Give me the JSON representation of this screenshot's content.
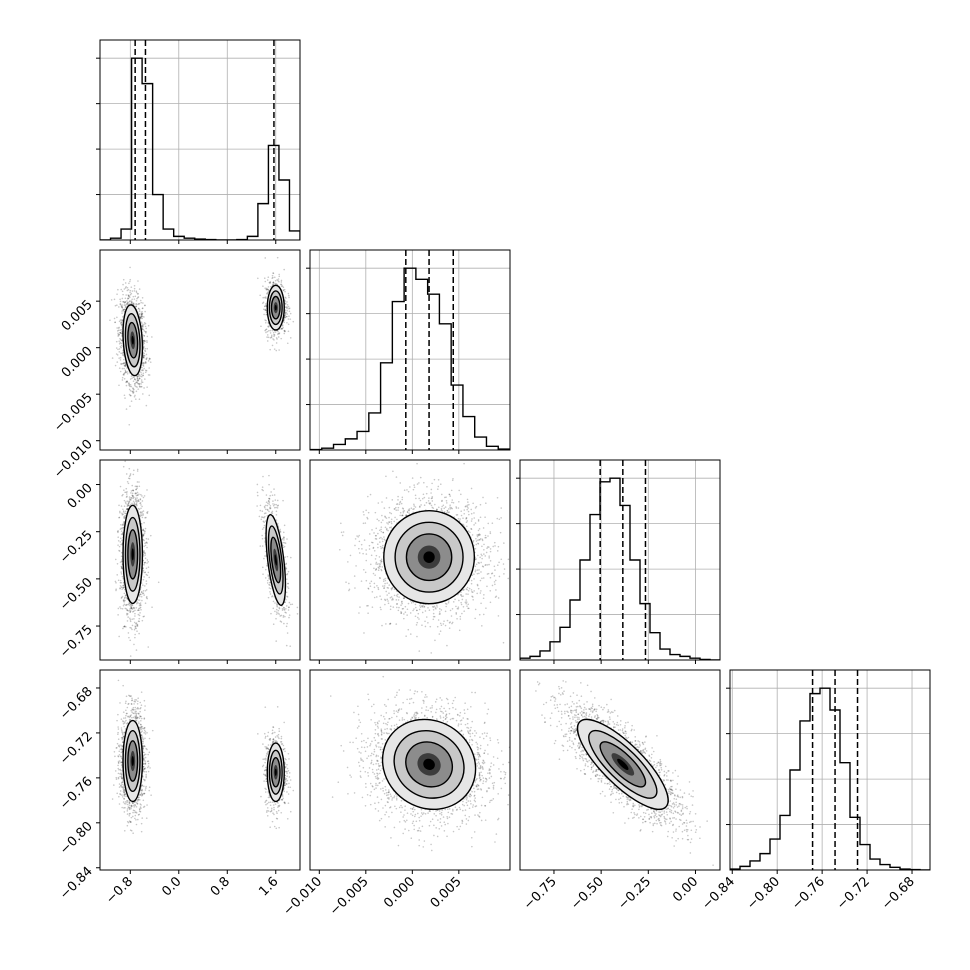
{
  "chart_data": {
    "type": "corner",
    "params": [
      {
        "range": [
          -1.3,
          2.0
        ],
        "ticks": [
          -0.8,
          0.0,
          0.8,
          1.6
        ],
        "tick_labels": [
          "−0.8",
          "0.0",
          "0.8",
          "1.6"
        ],
        "quantiles": [
          -0.72,
          -0.55,
          1.57
        ]
      },
      {
        "range": [
          -0.011,
          0.0105
        ],
        "ticks": [
          -0.01,
          -0.005,
          0.0,
          0.005
        ],
        "tick_labels": [
          "−0.010",
          "−0.005",
          "0.000",
          "0.005"
        ],
        "quantiles": [
          -0.0007,
          0.0018,
          0.0044
        ]
      },
      {
        "range": [
          -0.93,
          0.13
        ],
        "ticks": [
          -0.75,
          -0.5,
          -0.25,
          0.0
        ],
        "tick_labels": [
          "−0.75",
          "−0.50",
          "−0.25",
          "0.00"
        ],
        "quantiles": [
          -0.505,
          -0.385,
          -0.265
        ]
      },
      {
        "range": [
          -0.842,
          -0.664
        ],
        "ticks": [
          -0.84,
          -0.8,
          -0.76,
          -0.72,
          -0.68
        ],
        "tick_labels": [
          "−0.84",
          "−0.80",
          "−0.76",
          "−0.72",
          "−0.68"
        ],
        "quantiles": [
          -0.7685,
          -0.7485,
          -0.7285
        ]
      }
    ],
    "histograms": [
      {
        "param": 0,
        "counts": [
          0,
          0.01,
          0.06,
          1.0,
          0.86,
          0.25,
          0.06,
          0.02,
          0.01,
          0.005,
          0.002,
          0,
          0,
          0.002,
          0.02,
          0.2,
          0.52,
          0.33,
          0.05
        ],
        "ymax": 1.0
      },
      {
        "param": 1,
        "counts": [
          0.002,
          0.01,
          0.03,
          0.06,
          0.1,
          0.2,
          0.47,
          0.8,
          0.98,
          0.92,
          0.84,
          0.68,
          0.35,
          0.18,
          0.07,
          0.02,
          0.005
        ],
        "ymax": 0.98
      },
      {
        "param": 2,
        "counts": [
          0.01,
          0.02,
          0.05,
          0.1,
          0.18,
          0.33,
          0.55,
          0.8,
          0.98,
          1.0,
          0.85,
          0.55,
          0.31,
          0.15,
          0.06,
          0.03,
          0.02,
          0.01,
          0.003,
          0
        ],
        "ymax": 1.0
      },
      {
        "param": 3,
        "counts": [
          0.005,
          0.02,
          0.05,
          0.09,
          0.17,
          0.3,
          0.55,
          0.82,
          0.97,
          1.0,
          0.88,
          0.59,
          0.29,
          0.14,
          0.06,
          0.03,
          0.015,
          0.005,
          0.002,
          0
        ],
        "ymax": 1.0
      }
    ],
    "pairs": [
      {
        "x": 0,
        "y": 1,
        "modes": [
          {
            "cx": -0.76,
            "cy": 0.0008,
            "sx": 0.08,
            "sy": 0.0019,
            "rho": -0.2,
            "w": 0.68
          },
          {
            "cx": 1.6,
            "cy": 0.0043,
            "sx": 0.07,
            "sy": 0.0012,
            "rho": 0.0,
            "w": 0.32
          }
        ]
      },
      {
        "x": 0,
        "y": 2,
        "modes": [
          {
            "cx": -0.76,
            "cy": -0.37,
            "sx": 0.08,
            "sy": 0.13,
            "rho": 0.0,
            "w": 0.68
          },
          {
            "cx": 1.6,
            "cy": -0.4,
            "sx": 0.08,
            "sy": 0.12,
            "rho": -0.55,
            "w": 0.32
          }
        ]
      },
      {
        "x": 0,
        "y": 3,
        "modes": [
          {
            "cx": -0.76,
            "cy": -0.745,
            "sx": 0.08,
            "sy": 0.018,
            "rho": 0.0,
            "w": 0.68
          },
          {
            "cx": 1.6,
            "cy": -0.755,
            "sx": 0.07,
            "sy": 0.013,
            "rho": 0.0,
            "w": 0.32
          }
        ]
      },
      {
        "x": 1,
        "y": 2,
        "modes": [
          {
            "cx": 0.0018,
            "cy": -0.385,
            "sx": 0.0025,
            "sy": 0.12,
            "rho": 0.0,
            "w": 1.0
          }
        ]
      },
      {
        "x": 1,
        "y": 3,
        "modes": [
          {
            "cx": 0.0018,
            "cy": -0.748,
            "sx": 0.0025,
            "sy": 0.02,
            "rho": -0.1,
            "w": 1.0
          }
        ]
      },
      {
        "x": 2,
        "y": 3,
        "modes": [
          {
            "cx": -0.385,
            "cy": -0.748,
            "sx": 0.12,
            "sy": 0.02,
            "rho": -0.8,
            "w": 1.0
          }
        ]
      }
    ],
    "colors": {
      "line": "#000000",
      "grid": "#b0b0b0",
      "points": "#000000",
      "fill_dark": "#000000",
      "fill_light": "#e6e6e6"
    }
  }
}
